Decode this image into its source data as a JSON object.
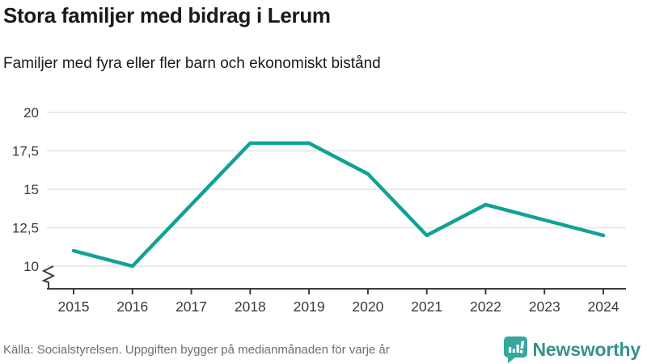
{
  "header": {
    "title": "Stora familjer med bidrag i Lerum",
    "subtitle": "Familjer med fyra eller fler barn och ekonomiskt bistånd"
  },
  "chart_data": {
    "type": "line",
    "title": "Stora familjer med bidrag i Lerum",
    "subtitle": "Familjer med fyra eller fler barn och ekonomiskt bistånd",
    "categories": [
      "2015",
      "2016",
      "2017",
      "2018",
      "2019",
      "2020",
      "2021",
      "2022",
      "2023",
      "2024"
    ],
    "values": [
      11,
      10,
      14,
      18,
      18,
      16,
      12,
      14,
      13,
      12
    ],
    "series_name": "Familjer med fyra eller fler barn och ekonomiskt bistånd",
    "xlabel": "",
    "ylabel": "",
    "ylim": [
      10,
      20
    ],
    "y_ticks": [
      10,
      12.5,
      15,
      17.5,
      20
    ],
    "y_tick_labels": [
      "10",
      "12,5",
      "15",
      "17,5",
      "20"
    ],
    "grid": "horizontal",
    "axis_break_at_bottom": true,
    "legend": "none"
  },
  "footer": {
    "source": "Källa: Socialstyrelsen. Uppgiften bygger på medianmånaden för varje år",
    "brand": "Newsworthy"
  },
  "colors": {
    "accent_line": "#10a295",
    "grid": "#e4e4e4",
    "axis": "#3d3d3d",
    "tick_text": "#3a3a3a",
    "title_text": "#1a1a1a",
    "muted_text": "#6e6e6e",
    "brand_icon": "#35a79c",
    "brand_text": "#37918b"
  }
}
